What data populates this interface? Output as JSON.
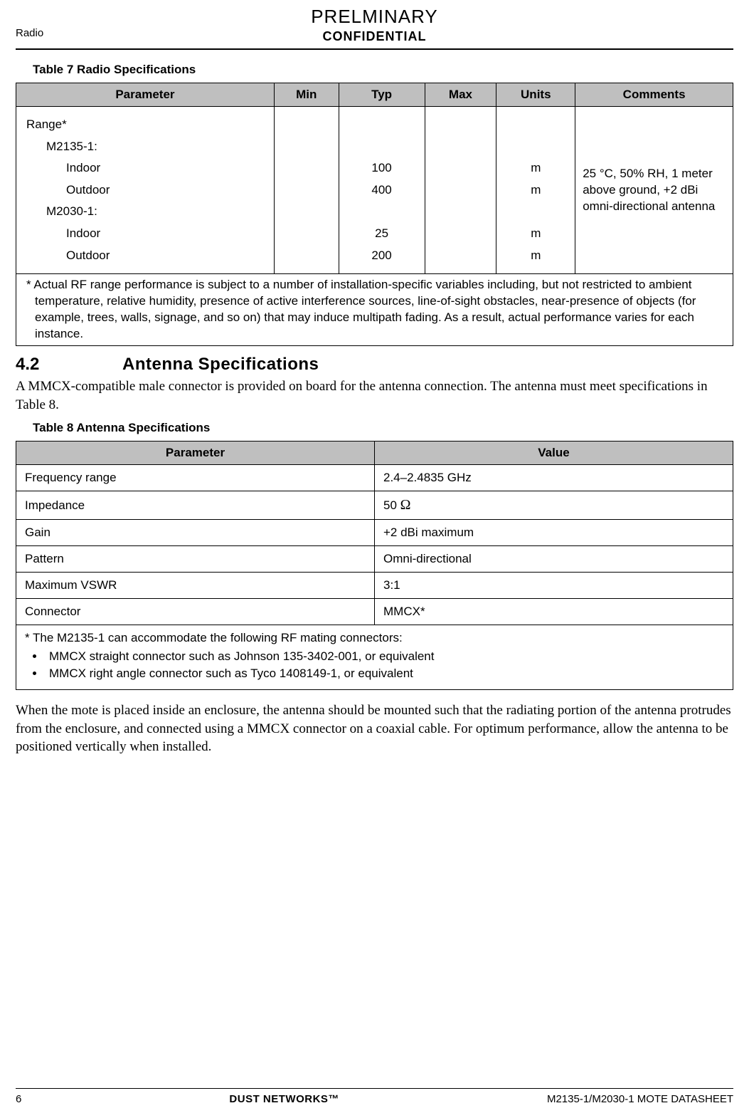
{
  "header": {
    "preliminary": "PRELMINARY",
    "confidential": "CONFIDENTIAL",
    "cornerLeft": "Radio"
  },
  "table7": {
    "caption": "Table 7    Radio Specifications",
    "columns": [
      "Parameter",
      "Min",
      "Typ",
      "Max",
      "Units",
      "Comments"
    ],
    "paramLines": {
      "range": "Range*",
      "m2135": "M2135-1:",
      "indoor1": "Indoor",
      "outdoor1": "Outdoor",
      "m2030": "M2030-1:",
      "indoor2": "Indoor",
      "outdoor2": "Outdoor"
    },
    "typValues": {
      "v1": "100",
      "v2": "400",
      "v3": "25",
      "v4": "200"
    },
    "unitValues": {
      "u1": "m",
      "u2": "m",
      "u3": "m",
      "u4": "m"
    },
    "comments": "25 °C, 50% RH, 1 meter above ground, +2 dBi omni-directional antenna",
    "footnote": "* Actual RF range performance is subject to a number of installation-specific variables including, but not restricted to ambient temperature, relative humidity, presence of active interference sources, line-of-sight obstacles, near-presence of objects (for example, trees, walls, signage, and so on) that may induce multipath fading. As a result, actual performance varies for each instance."
  },
  "section42": {
    "num": "4.2",
    "title": "Antenna Specifications",
    "intro": "A MMCX-compatible male connector is provided on board for the antenna connection. The antenna must meet specifications in Table 8."
  },
  "table8": {
    "caption": "Table 8    Antenna Specifications",
    "columns": [
      "Parameter",
      "Value"
    ],
    "rows": [
      {
        "param": "Frequency range",
        "value": "2.4–2.4835 GHz"
      },
      {
        "param": "Impedance",
        "value": " 50 Ω"
      },
      {
        "param": "Gain",
        "value": "+2 dBi maximum"
      },
      {
        "param": "Pattern",
        "value": "Omni-directional"
      },
      {
        "param": "Maximum VSWR",
        "value": "3:1"
      },
      {
        "param": "Connector",
        "value": "MMCX*"
      }
    ],
    "noteIntro": "* The M2135-1 can accommodate the following RF mating connectors:",
    "bullets": [
      "MMCX straight connector such as Johnson 135-3402-001, or equivalent",
      "MMCX right angle connector such as Tyco 1408149-1, or equivalent"
    ]
  },
  "closing": "When the mote is placed inside an enclosure, the antenna should be mounted such that the radiating portion of the antenna protrudes from the enclosure, and connected using a MMCX connector on a coaxial cable. For optimum performance, allow the antenna to be positioned vertically when installed.",
  "footer": {
    "pageNum": "6",
    "center": "DUST NETWORKS™",
    "right": "M2135-1/M2030-1 MOTE DATASHEET"
  }
}
